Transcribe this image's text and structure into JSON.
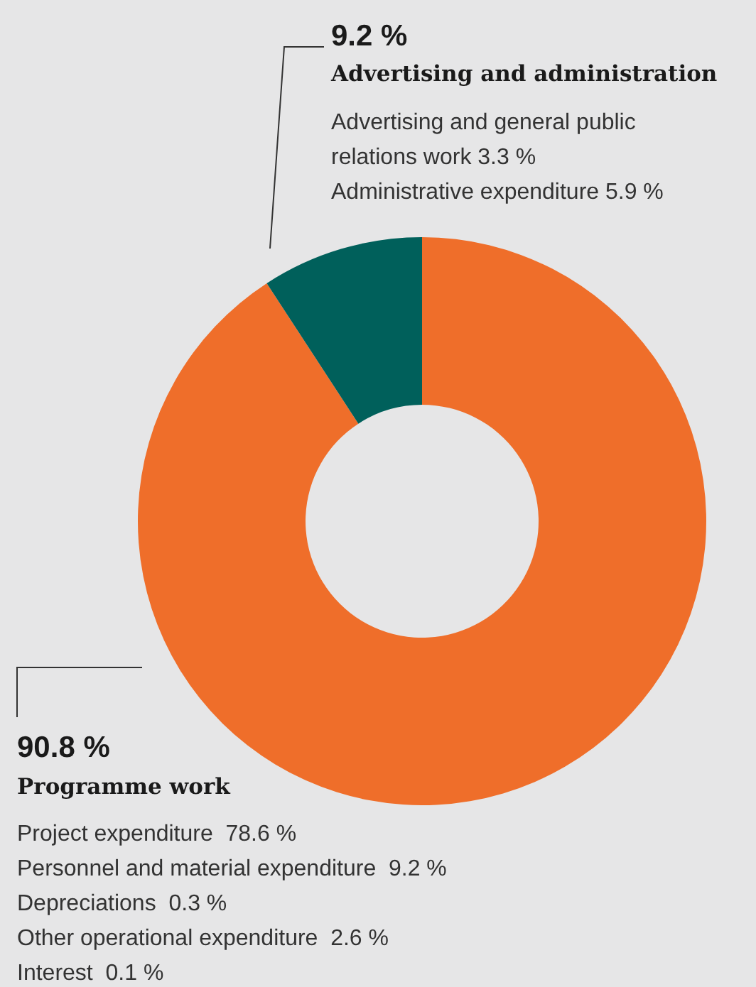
{
  "chart_data": {
    "type": "donut",
    "categories": [
      "Programme work",
      "Advertising and administration"
    ],
    "values": [
      90.8,
      9.2
    ],
    "value_labels": [
      "90.8 %",
      "9.2 %"
    ],
    "colors": [
      "#ef6e2a",
      "#00605b"
    ],
    "annotations": [
      "Advertising and general public relations work 3.3 %",
      "Administrative expenditure 5.9 %",
      "Project expenditure  78.6 %",
      "Personnel and material expenditure  9.2 %",
      "Depreciations  0.3 %",
      "Other operational expenditure  2.6 %",
      "Interest  0.1 %"
    ]
  }
}
